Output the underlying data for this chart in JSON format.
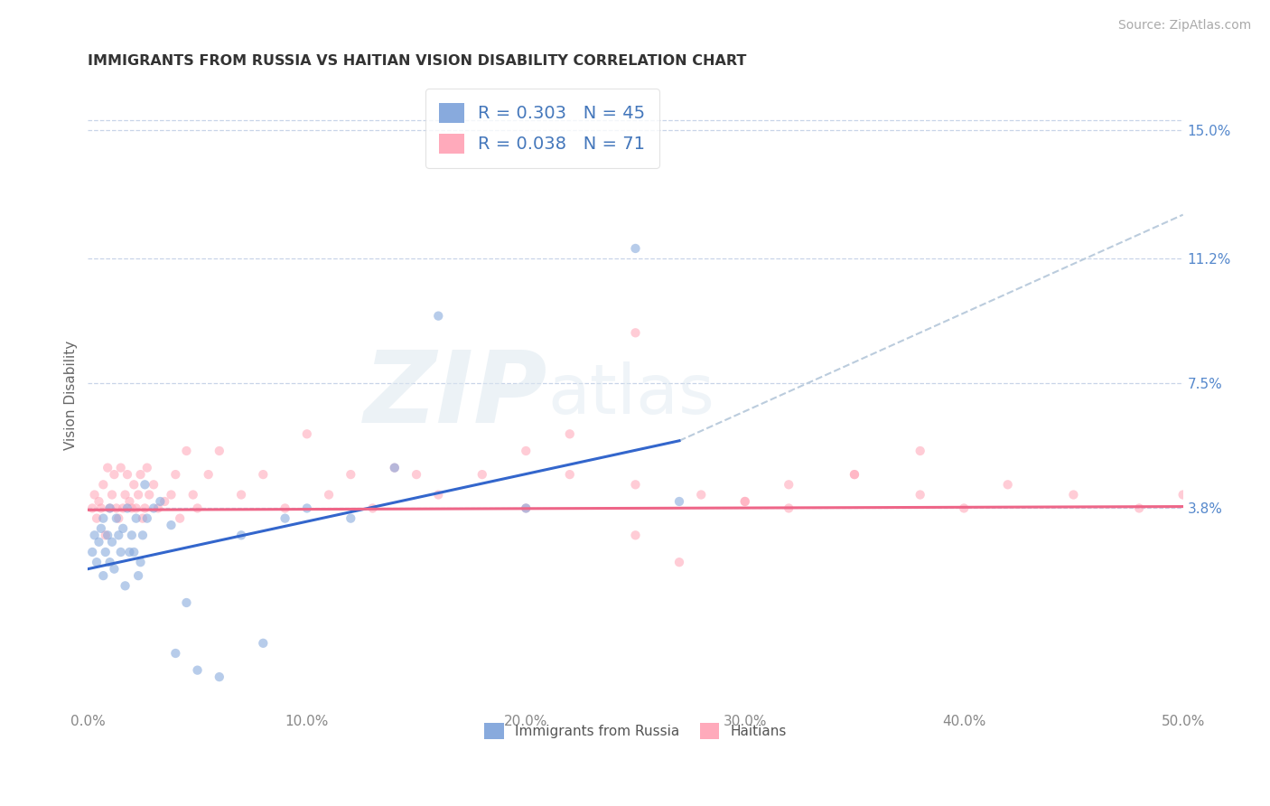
{
  "title": "IMMIGRANTS FROM RUSSIA VS HAITIAN VISION DISABILITY CORRELATION CHART",
  "source": "Source: ZipAtlas.com",
  "ylabel": "Vision Disability",
  "xlim": [
    0.0,
    0.5
  ],
  "ylim": [
    -0.022,
    0.165
  ],
  "yticks": [
    0.038,
    0.075,
    0.112,
    0.15
  ],
  "ytick_labels": [
    "3.8%",
    "7.5%",
    "11.2%",
    "15.0%"
  ],
  "xticks": [
    0.0,
    0.1,
    0.2,
    0.3,
    0.4,
    0.5
  ],
  "xtick_labels": [
    "0.0%",
    "10.0%",
    "20.0%",
    "30.0%",
    "40.0%",
    "50.0%"
  ],
  "background_color": "#ffffff",
  "grid_color": "#c8d4e8",
  "russia_dot_color": "#88aadd",
  "russia_line_color": "#3366cc",
  "haiti_dot_color": "#ffaabb",
  "haiti_line_color": "#ee6688",
  "dash_color": "#bbccdd",
  "russia_R": "0.303",
  "russia_N": "45",
  "haiti_R": "0.038",
  "haiti_N": "71",
  "legend_text_color": "#4477bb",
  "tick_color_y": "#5588cc",
  "tick_color_x": "#888888",
  "title_color": "#333333",
  "source_color": "#aaaaaa",
  "ylabel_color": "#666666",
  "title_fontsize": 11.5,
  "axis_label_fontsize": 11,
  "tick_fontsize": 11,
  "legend_fontsize": 14,
  "source_fontsize": 10,
  "russia_x": [
    0.002,
    0.003,
    0.004,
    0.005,
    0.006,
    0.007,
    0.007,
    0.008,
    0.009,
    0.01,
    0.01,
    0.011,
    0.012,
    0.013,
    0.014,
    0.015,
    0.016,
    0.017,
    0.018,
    0.019,
    0.02,
    0.021,
    0.022,
    0.023,
    0.024,
    0.025,
    0.026,
    0.027,
    0.03,
    0.033,
    0.038,
    0.04,
    0.045,
    0.05,
    0.06,
    0.07,
    0.08,
    0.09,
    0.1,
    0.12,
    0.14,
    0.16,
    0.2,
    0.25,
    0.27
  ],
  "russia_y": [
    0.025,
    0.03,
    0.022,
    0.028,
    0.032,
    0.018,
    0.035,
    0.025,
    0.03,
    0.022,
    0.038,
    0.028,
    0.02,
    0.035,
    0.03,
    0.025,
    0.032,
    0.015,
    0.038,
    0.025,
    0.03,
    0.025,
    0.035,
    0.018,
    0.022,
    0.03,
    0.045,
    0.035,
    0.038,
    0.04,
    0.033,
    -0.005,
    0.01,
    -0.01,
    -0.012,
    0.03,
    -0.002,
    0.035,
    0.038,
    0.035,
    0.05,
    0.095,
    0.038,
    0.115,
    0.04
  ],
  "haiti_x": [
    0.002,
    0.003,
    0.004,
    0.005,
    0.006,
    0.007,
    0.008,
    0.009,
    0.01,
    0.011,
    0.012,
    0.013,
    0.014,
    0.015,
    0.016,
    0.017,
    0.018,
    0.019,
    0.02,
    0.021,
    0.022,
    0.023,
    0.024,
    0.025,
    0.026,
    0.027,
    0.028,
    0.03,
    0.032,
    0.035,
    0.038,
    0.04,
    0.042,
    0.045,
    0.048,
    0.05,
    0.055,
    0.06,
    0.07,
    0.08,
    0.09,
    0.1,
    0.11,
    0.12,
    0.13,
    0.14,
    0.16,
    0.18,
    0.2,
    0.22,
    0.25,
    0.28,
    0.3,
    0.32,
    0.35,
    0.38,
    0.4,
    0.42,
    0.45,
    0.48,
    0.5,
    0.2,
    0.25,
    0.3,
    0.22,
    0.27,
    0.32,
    0.38,
    0.15,
    0.25,
    0.35
  ],
  "haiti_y": [
    0.038,
    0.042,
    0.035,
    0.04,
    0.038,
    0.045,
    0.03,
    0.05,
    0.038,
    0.042,
    0.048,
    0.038,
    0.035,
    0.05,
    0.038,
    0.042,
    0.048,
    0.04,
    0.038,
    0.045,
    0.038,
    0.042,
    0.048,
    0.035,
    0.038,
    0.05,
    0.042,
    0.045,
    0.038,
    0.04,
    0.042,
    0.048,
    0.035,
    0.055,
    0.042,
    0.038,
    0.048,
    0.055,
    0.042,
    0.048,
    0.038,
    0.06,
    0.042,
    0.048,
    0.038,
    0.05,
    0.042,
    0.048,
    0.038,
    0.06,
    0.045,
    0.042,
    0.04,
    0.045,
    0.048,
    0.042,
    0.038,
    0.045,
    0.042,
    0.038,
    0.042,
    0.055,
    0.03,
    0.04,
    0.048,
    0.022,
    0.038,
    0.055,
    0.048,
    0.09,
    0.048
  ],
  "russia_line_x": [
    0.0,
    0.27
  ],
  "russia_line_y": [
    0.02,
    0.058
  ],
  "haiti_line_x": [
    0.0,
    0.5
  ],
  "haiti_line_y": [
    0.0375,
    0.0385
  ],
  "dash_line_x": [
    0.27,
    0.5
  ],
  "dash_line_y": [
    0.058,
    0.125
  ]
}
